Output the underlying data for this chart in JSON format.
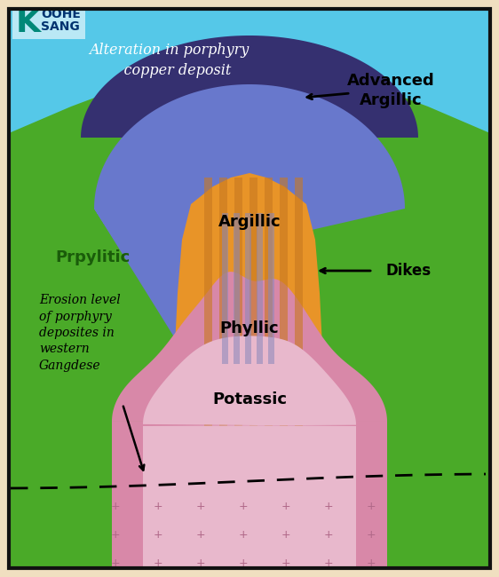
{
  "fig_width": 5.62,
  "fig_height": 6.5,
  "dpi": 100,
  "bg_outer": "#f0dfc0",
  "bg_sky": "#55c8e8",
  "bg_beige": "#eddfc0",
  "color_green": "#4aaa28",
  "color_blue_argillic": "#6878cc",
  "color_dark_advanced": "#353070",
  "color_orange_phyllic": "#e89428",
  "color_orange_light": "#f0a840",
  "color_pink_potassic_dark": "#d888a8",
  "color_pink_potassic_light": "#e8b8cc",
  "color_dike_stripe": "#c87820",
  "color_argillic_stripe": "#8888bb",
  "border_color": "#111111",
  "title_text": "Alteration in porphyry\n    copper deposit",
  "label_advanced": "Advanced\nArgillic",
  "label_argillic": "Argillic",
  "label_propylitic": "Prpylitic",
  "label_phyllic": "Phyllic",
  "label_potassic": "Potassic",
  "label_dikes": "Dikes",
  "label_erosion": "Erosion level\nof porphyry\ndeposites in\nwestern\nGangdese",
  "logo_K": "K",
  "logo_text1": "OOHE",
  "logo_text2": "SANG"
}
